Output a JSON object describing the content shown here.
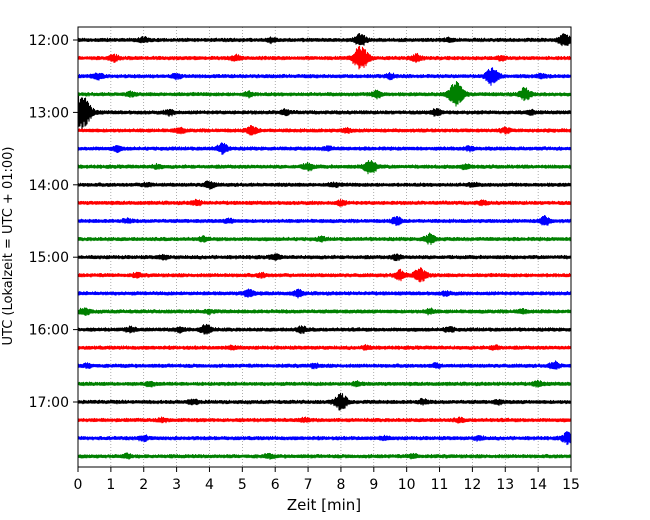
{
  "chart_data": {
    "type": "line",
    "title": "",
    "xlabel": "Zeit  [min]",
    "ylabel": "UTC (Lokalzeit = UTC + 01:00)",
    "xlim": [
      0,
      15
    ],
    "x_ticks": [
      "0",
      "1",
      "2",
      "3",
      "4",
      "5",
      "6",
      "7",
      "8",
      "9",
      "10",
      "11",
      "12",
      "13",
      "14",
      "15"
    ],
    "y_ticks": [
      {
        "label": "12:00",
        "trace": 0
      },
      {
        "label": "13:00",
        "trace": 4
      },
      {
        "label": "14:00",
        "trace": 8
      },
      {
        "label": "15:00",
        "trace": 12
      },
      {
        "label": "16:00",
        "trace": 16
      },
      {
        "label": "17:00",
        "trace": 20
      }
    ],
    "grid": "vertical dotted",
    "colors": [
      "#000000",
      "#ff0000",
      "#0000ff",
      "#008000"
    ],
    "series": [
      {
        "time": "12:00",
        "color": "#000000",
        "events": [
          [
            8.6,
            1.0
          ],
          [
            14.8,
            1.0
          ],
          [
            2.0,
            0.4
          ],
          [
            5.9,
            0.4
          ],
          [
            11.3,
            0.3
          ]
        ]
      },
      {
        "time": "12:15",
        "color": "#ff0000",
        "events": [
          [
            8.6,
            2.0
          ],
          [
            10.3,
            0.6
          ],
          [
            1.1,
            0.5
          ],
          [
            4.8,
            0.4
          ],
          [
            12.9,
            0.3
          ]
        ]
      },
      {
        "time": "12:30",
        "color": "#0000ff",
        "events": [
          [
            12.6,
            1.4
          ],
          [
            0.6,
            0.5
          ],
          [
            3.0,
            0.4
          ],
          [
            9.5,
            0.4
          ],
          [
            14.1,
            0.3
          ]
        ]
      },
      {
        "time": "12:45",
        "color": "#008000",
        "events": [
          [
            11.5,
            2.0
          ],
          [
            13.6,
            1.0
          ],
          [
            9.1,
            0.6
          ],
          [
            5.2,
            0.4
          ],
          [
            1.6,
            0.3
          ]
        ]
      },
      {
        "time": "13:00",
        "color": "#000000",
        "events": [
          [
            0.1,
            3.0
          ],
          [
            10.9,
            0.5
          ],
          [
            2.8,
            0.4
          ],
          [
            6.3,
            0.4
          ],
          [
            13.8,
            0.3
          ]
        ]
      },
      {
        "time": "13:15",
        "color": "#ff0000",
        "events": [
          [
            5.3,
            0.7
          ],
          [
            3.1,
            0.4
          ],
          [
            13.0,
            0.4
          ],
          [
            8.2,
            0.3
          ]
        ]
      },
      {
        "time": "13:30",
        "color": "#0000ff",
        "events": [
          [
            4.4,
            0.8
          ],
          [
            1.2,
            0.4
          ],
          [
            7.6,
            0.3
          ],
          [
            11.9,
            0.3
          ]
        ]
      },
      {
        "time": "13:45",
        "color": "#008000",
        "events": [
          [
            8.9,
            1.2
          ],
          [
            7.0,
            0.6
          ],
          [
            11.8,
            0.4
          ],
          [
            2.4,
            0.3
          ]
        ]
      },
      {
        "time": "14:00",
        "color": "#000000",
        "events": [
          [
            4.0,
            0.6
          ],
          [
            2.1,
            0.3
          ],
          [
            7.8,
            0.3
          ],
          [
            12.0,
            0.3
          ]
        ]
      },
      {
        "time": "14:15",
        "color": "#ff0000",
        "events": [
          [
            3.6,
            0.4
          ],
          [
            8.0,
            0.4
          ],
          [
            12.3,
            0.3
          ]
        ]
      },
      {
        "time": "14:30",
        "color": "#0000ff",
        "events": [
          [
            14.2,
            0.7
          ],
          [
            9.7,
            0.6
          ],
          [
            4.6,
            0.3
          ],
          [
            1.5,
            0.3
          ]
        ]
      },
      {
        "time": "14:45",
        "color": "#008000",
        "events": [
          [
            10.7,
            0.8
          ],
          [
            3.8,
            0.3
          ],
          [
            7.4,
            0.3
          ]
        ]
      },
      {
        "time": "15:00",
        "color": "#000000",
        "events": [
          [
            6.0,
            0.4
          ],
          [
            9.7,
            0.4
          ],
          [
            2.6,
            0.3
          ]
        ]
      },
      {
        "time": "15:15",
        "color": "#ff0000",
        "events": [
          [
            10.4,
            1.2
          ],
          [
            9.8,
            0.8
          ],
          [
            1.8,
            0.3
          ],
          [
            5.6,
            0.3
          ]
        ]
      },
      {
        "time": "15:30",
        "color": "#0000ff",
        "events": [
          [
            5.2,
            0.6
          ],
          [
            6.7,
            0.5
          ],
          [
            11.2,
            0.3
          ]
        ]
      },
      {
        "time": "15:45",
        "color": "#008000",
        "events": [
          [
            0.2,
            0.6
          ],
          [
            10.7,
            0.4
          ],
          [
            4.0,
            0.3
          ],
          [
            13.5,
            0.3
          ]
        ]
      },
      {
        "time": "16:00",
        "color": "#000000",
        "events": [
          [
            3.9,
            0.8
          ],
          [
            6.8,
            0.5
          ],
          [
            1.6,
            0.4
          ],
          [
            3.1,
            0.4
          ],
          [
            11.3,
            0.4
          ]
        ]
      },
      {
        "time": "16:15",
        "color": "#ff0000",
        "events": [
          [
            4.7,
            0.3
          ],
          [
            8.8,
            0.3
          ],
          [
            12.7,
            0.3
          ]
        ]
      },
      {
        "time": "16:30",
        "color": "#0000ff",
        "events": [
          [
            14.5,
            0.6
          ],
          [
            0.3,
            0.3
          ],
          [
            7.2,
            0.3
          ],
          [
            10.9,
            0.3
          ]
        ]
      },
      {
        "time": "16:45",
        "color": "#008000",
        "events": [
          [
            14.0,
            0.4
          ],
          [
            2.2,
            0.3
          ],
          [
            8.5,
            0.3
          ]
        ]
      },
      {
        "time": "17:00",
        "color": "#000000",
        "events": [
          [
            8.0,
            1.4
          ],
          [
            3.5,
            0.4
          ],
          [
            10.5,
            0.4
          ],
          [
            12.8,
            0.3
          ]
        ]
      },
      {
        "time": "17:15",
        "color": "#ff0000",
        "events": [
          [
            2.6,
            0.3
          ],
          [
            6.9,
            0.3
          ],
          [
            11.6,
            0.3
          ]
        ]
      },
      {
        "time": "17:30",
        "color": "#0000ff",
        "events": [
          [
            14.9,
            0.9
          ],
          [
            2.0,
            0.4
          ],
          [
            9.3,
            0.3
          ],
          [
            12.2,
            0.3
          ]
        ]
      },
      {
        "time": "17:45",
        "color": "#008000",
        "events": [
          [
            1.5,
            0.3
          ],
          [
            5.8,
            0.3
          ],
          [
            10.2,
            0.3
          ]
        ]
      }
    ]
  }
}
